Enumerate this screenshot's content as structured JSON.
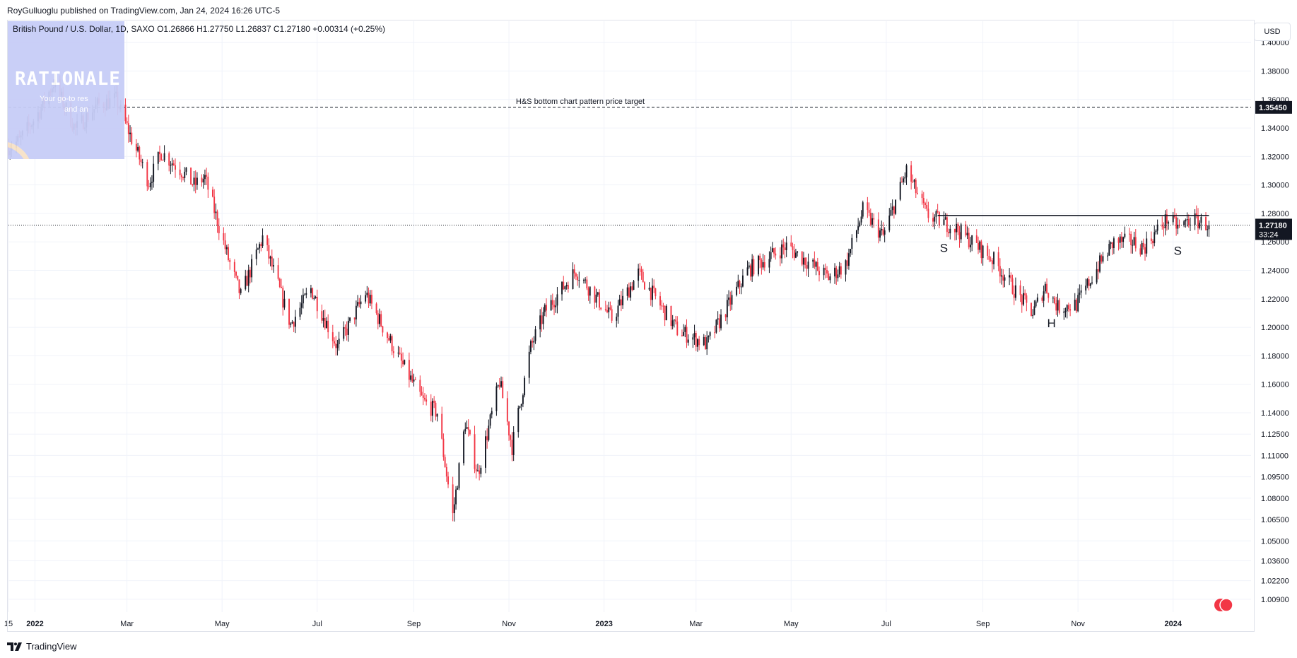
{
  "header": {
    "published": "RoyGulluoglu published on TradingView.com, Jan 24, 2024 16:26 UTC-5",
    "symbol_line": "British Pound / U.S. Dollar, 1D, SAXO  O1.26866  H1.27750  L1.26837  C1.27180  +0.00314 (+0.25%)"
  },
  "logo": {
    "title": "RATIONALE",
    "tagline_1": "Your go-to res",
    "tagline_2": "and an"
  },
  "currency": "USD",
  "footer": {
    "brand": "TradingView"
  },
  "colors": {
    "up": "#131722",
    "down": "#f23645",
    "grid": "#f0f3fa",
    "axis_text": "#131722"
  },
  "chart_data": {
    "type": "candlestick",
    "y_axis": {
      "min": 1.0,
      "max": 1.415,
      "side": "right",
      "ticks": [
        "1.40000",
        "1.38000",
        "1.36000",
        "1.34000",
        "1.32000",
        "1.30000",
        "1.28000",
        "1.26000",
        "1.24000",
        "1.22000",
        "1.20000",
        "1.18000",
        "1.16000",
        "1.14000",
        "1.12500",
        "1.11000",
        "1.09500",
        "1.08000",
        "1.06500",
        "1.05000",
        "1.03600",
        "1.02200",
        "1.00900"
      ]
    },
    "x_axis": {
      "start": "2021-12-15",
      "end": "2024-02-20",
      "ticks": [
        {
          "label": "15",
          "date": "2021-12-15",
          "bold": false
        },
        {
          "label": "2022",
          "date": "2022-01-01",
          "bold": true
        },
        {
          "label": "Mar",
          "date": "2022-03-01",
          "bold": false
        },
        {
          "label": "May",
          "date": "2022-05-01",
          "bold": false
        },
        {
          "label": "Jul",
          "date": "2022-07-01",
          "bold": false
        },
        {
          "label": "Sep",
          "date": "2022-09-01",
          "bold": false
        },
        {
          "label": "Nov",
          "date": "2022-11-01",
          "bold": false
        },
        {
          "label": "2023",
          "date": "2023-01-01",
          "bold": true
        },
        {
          "label": "Mar",
          "date": "2023-03-01",
          "bold": false
        },
        {
          "label": "May",
          "date": "2023-05-01",
          "bold": false
        },
        {
          "label": "Jul",
          "date": "2023-07-01",
          "bold": false
        },
        {
          "label": "Sep",
          "date": "2023-09-01",
          "bold": false
        },
        {
          "label": "Nov",
          "date": "2023-11-01",
          "bold": false
        },
        {
          "label": "2024",
          "date": "2024-01-01",
          "bold": true
        }
      ]
    },
    "keypoints": [
      [
        "2021-12-15",
        1.327
      ],
      [
        "2021-12-22",
        1.331
      ],
      [
        "2022-01-04",
        1.352
      ],
      [
        "2022-01-13",
        1.372
      ],
      [
        "2022-01-27",
        1.339
      ],
      [
        "2022-02-10",
        1.356
      ],
      [
        "2022-02-22",
        1.36
      ],
      [
        "2022-03-15",
        1.302
      ],
      [
        "2022-03-23",
        1.323
      ],
      [
        "2022-04-05",
        1.31
      ],
      [
        "2022-04-13",
        1.3
      ],
      [
        "2022-04-20",
        1.305
      ],
      [
        "2022-05-05",
        1.248
      ],
      [
        "2022-05-13",
        1.222
      ],
      [
        "2022-05-27",
        1.263
      ],
      [
        "2022-06-14",
        1.202
      ],
      [
        "2022-06-27",
        1.227
      ],
      [
        "2022-07-14",
        1.186
      ],
      [
        "2022-08-01",
        1.224
      ],
      [
        "2022-08-23",
        1.177
      ],
      [
        "2022-09-07",
        1.148
      ],
      [
        "2022-09-16",
        1.14
      ],
      [
        "2022-09-26",
        1.068
      ],
      [
        "2022-10-04",
        1.133
      ],
      [
        "2022-10-12",
        1.097
      ],
      [
        "2022-10-26",
        1.162
      ],
      [
        "2022-11-03",
        1.116
      ],
      [
        "2022-11-15",
        1.186
      ],
      [
        "2022-11-24",
        1.211
      ],
      [
        "2022-12-14",
        1.24
      ],
      [
        "2023-01-06",
        1.206
      ],
      [
        "2023-01-23",
        1.238
      ],
      [
        "2023-02-17",
        1.198
      ],
      [
        "2023-03-08",
        1.188
      ],
      [
        "2023-04-03",
        1.24
      ],
      [
        "2023-04-28",
        1.257
      ],
      [
        "2023-05-25",
        1.235
      ],
      [
        "2023-06-05",
        1.244
      ],
      [
        "2023-06-16",
        1.282
      ],
      [
        "2023-06-29",
        1.264
      ],
      [
        "2023-07-14",
        1.31
      ],
      [
        "2023-07-27",
        1.279
      ],
      [
        "2023-08-14",
        1.27
      ],
      [
        "2023-08-25",
        1.26
      ],
      [
        "2023-09-08",
        1.247
      ],
      [
        "2023-09-22",
        1.225
      ],
      [
        "2023-10-03",
        1.21
      ],
      [
        "2023-10-11",
        1.229
      ],
      [
        "2023-10-19",
        1.214
      ],
      [
        "2023-10-31",
        1.216
      ],
      [
        "2023-11-14",
        1.243
      ],
      [
        "2023-11-24",
        1.26
      ],
      [
        "2023-12-06",
        1.26
      ],
      [
        "2023-12-13",
        1.256
      ],
      [
        "2023-12-28",
        1.276
      ],
      [
        "2024-01-05",
        1.27
      ],
      [
        "2024-01-12",
        1.276
      ],
      [
        "2024-01-24",
        1.272
      ]
    ],
    "last": {
      "close": 1.2718,
      "label": "1.27180",
      "countdown": "33:24"
    },
    "annotations": {
      "target_line": {
        "price": 1.3545,
        "label": "H&S bottom chart pattern price target",
        "price_label": "1.35450",
        "style": "dashed"
      },
      "neckline": {
        "price": 1.2785,
        "from": "2023-08-03",
        "to": "2024-01-24"
      },
      "pattern_labels": [
        {
          "text": "S",
          "date": "2023-08-07",
          "price": 1.253
        },
        {
          "text": "H",
          "date": "2023-10-15",
          "price": 1.2
        },
        {
          "text": "S",
          "date": "2024-01-04",
          "price": 1.251
        }
      ]
    }
  }
}
